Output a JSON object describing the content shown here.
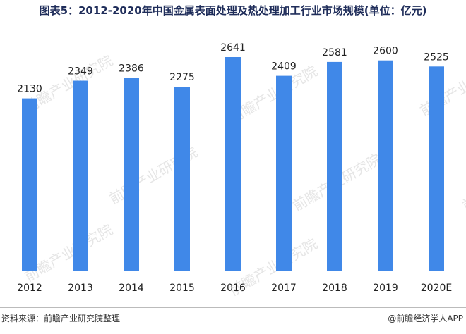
{
  "title": "图表5：2012-2020年中国金属表面处理及热处理加工行业市场规模(单位：亿元)",
  "source": "资料来源：前瞻产业研究院整理",
  "brand": "@前瞻经济学人APP",
  "watermark": "前瞻产业研究院",
  "colors": {
    "bar": "#4088e8",
    "axis": "#b0b0b0"
  },
  "chart_data": {
    "type": "bar",
    "title": "图表5：2012-2020年中国金属表面处理及热处理加工行业市场规模(单位：亿元)",
    "xlabel": "",
    "ylabel": "",
    "ylim": [
      0,
      2641
    ],
    "categories": [
      "2012",
      "2013",
      "2014",
      "2015",
      "2016",
      "2017",
      "2018",
      "2019",
      "2020E"
    ],
    "values": [
      2130,
      2349,
      2386,
      2275,
      2641,
      2409,
      2581,
      2600,
      2525
    ],
    "data_labels": [
      "2130",
      "2349",
      "2386",
      "2275",
      "2641",
      "2409",
      "2581",
      "2600",
      "2525"
    ],
    "grid": false,
    "legend": "none"
  }
}
